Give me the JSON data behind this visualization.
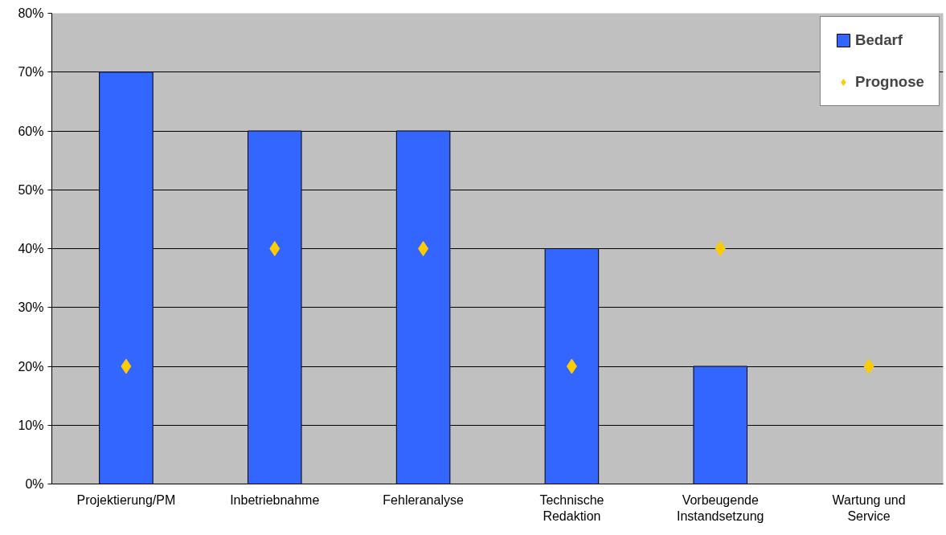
{
  "chart_data": {
    "type": "bar",
    "categories": [
      "Projektierung/PM",
      "Inbetriebnahme",
      "Fehleranalyse",
      "Technische\nRedaktion",
      "Vorbeugende\nInstandsetzung",
      "Wartung und\nService"
    ],
    "series": [
      {
        "name": "Bedarf",
        "color": "#3366ff",
        "values": [
          70,
          60,
          60,
          40,
          20,
          null
        ]
      },
      {
        "name": "Prognose",
        "type": "scatter",
        "marker": "diamond",
        "color": "#ffcc00",
        "values": [
          20,
          40,
          40,
          20,
          40,
          20
        ]
      }
    ],
    "ylim": [
      0,
      80
    ],
    "yticks": [
      {
        "value": 0,
        "label": "0%"
      },
      {
        "value": 10,
        "label": "10%"
      },
      {
        "value": 20,
        "label": "20%"
      },
      {
        "value": 30,
        "label": "30%"
      },
      {
        "value": 40,
        "label": "40%"
      },
      {
        "value": 50,
        "label": "50%"
      },
      {
        "value": 60,
        "label": "60%"
      },
      {
        "value": 70,
        "label": "70%"
      },
      {
        "value": 80,
        "label": "80%"
      }
    ],
    "grid": "y",
    "legend": "top right"
  }
}
